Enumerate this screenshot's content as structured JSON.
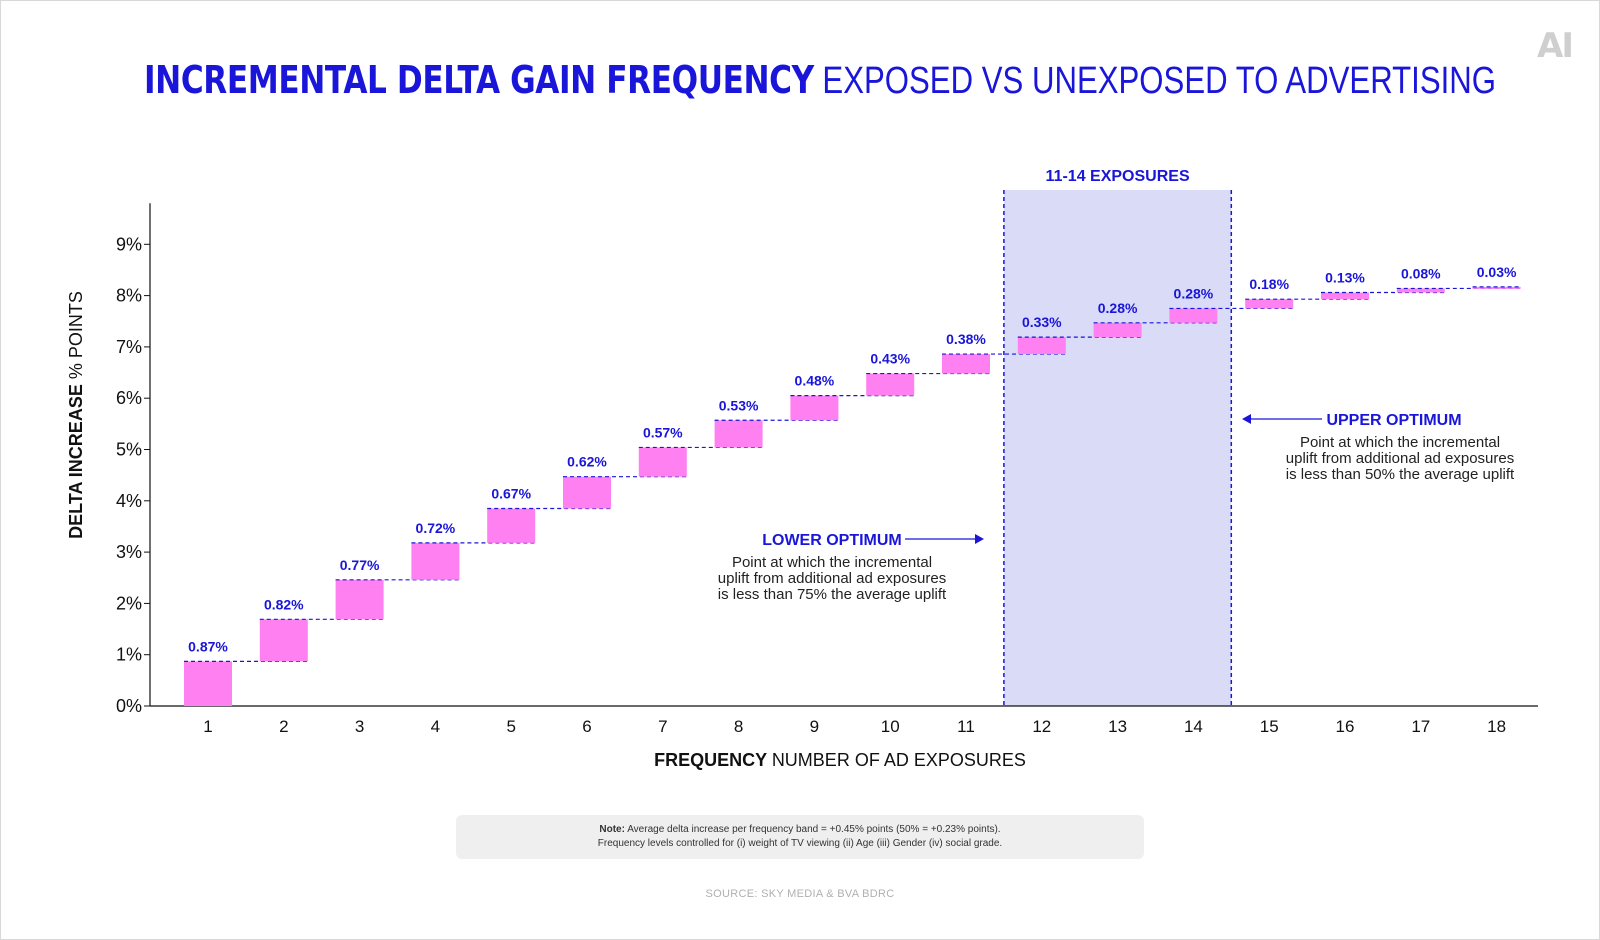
{
  "logo": "AI",
  "title": {
    "bold": "INCREMENTAL DELTA GAIN FREQUENCY",
    "light": "EXPOSED VS UNEXPOSED TO ADVERTISING"
  },
  "colors": {
    "accent": "#1a16d9",
    "bar": "#ff80f0",
    "highlight": "#d9dbf7",
    "axis": "#111111"
  },
  "chart_data": {
    "type": "bar",
    "subtype": "waterfall",
    "categories": [
      "1",
      "2",
      "3",
      "4",
      "5",
      "6",
      "7",
      "8",
      "9",
      "10",
      "11",
      "12",
      "13",
      "14",
      "15",
      "16",
      "17",
      "18"
    ],
    "values": [
      0.87,
      0.82,
      0.77,
      0.72,
      0.67,
      0.62,
      0.57,
      0.53,
      0.48,
      0.43,
      0.38,
      0.33,
      0.28,
      0.28,
      0.18,
      0.13,
      0.08,
      0.03
    ],
    "labels": [
      "0.87%",
      "0.82%",
      "0.77%",
      "0.72%",
      "0.67%",
      "0.62%",
      "0.57%",
      "0.53%",
      "0.48%",
      "0.43%",
      "0.38%",
      "0.33%",
      "0.28%",
      "0.28%",
      "0.18%",
      "0.13%",
      "0.08%",
      "0.03%"
    ],
    "yticks": [
      "0%",
      "1%",
      "2%",
      "3%",
      "4%",
      "5%",
      "6%",
      "7%",
      "8%",
      "9%"
    ],
    "ylim": [
      0,
      9.8
    ],
    "ylabel_bold": "DELTA INCREASE",
    "ylabel_light": "% POINTS",
    "xlabel_bold": "FREQUENCY",
    "xlabel_light": "NUMBER OF AD EXPOSURES",
    "highlight": {
      "label": "11-14 EXPOSURES",
      "from": 11.5,
      "to": 14.5
    }
  },
  "annotations": {
    "lower": {
      "title": "LOWER OPTIMUM",
      "lines": [
        "Point at which the incremental",
        "uplift from additional ad exposures",
        "is less than 75% the average uplift"
      ]
    },
    "upper": {
      "title": "UPPER OPTIMUM",
      "lines": [
        "Point at which the incremental",
        "uplift from additional ad exposures",
        "is less than 50% the average uplift"
      ]
    }
  },
  "note": {
    "prefix": "Note:",
    "line1": "Average delta increase per frequency band = +0.45% points (50% = +0.23% points).",
    "line2": "Frequency levels controlled for (i) weight of TV viewing (ii) Age (iii) Gender (iv) social grade."
  },
  "source": "SOURCE: SKY MEDIA & BVA BDRC"
}
